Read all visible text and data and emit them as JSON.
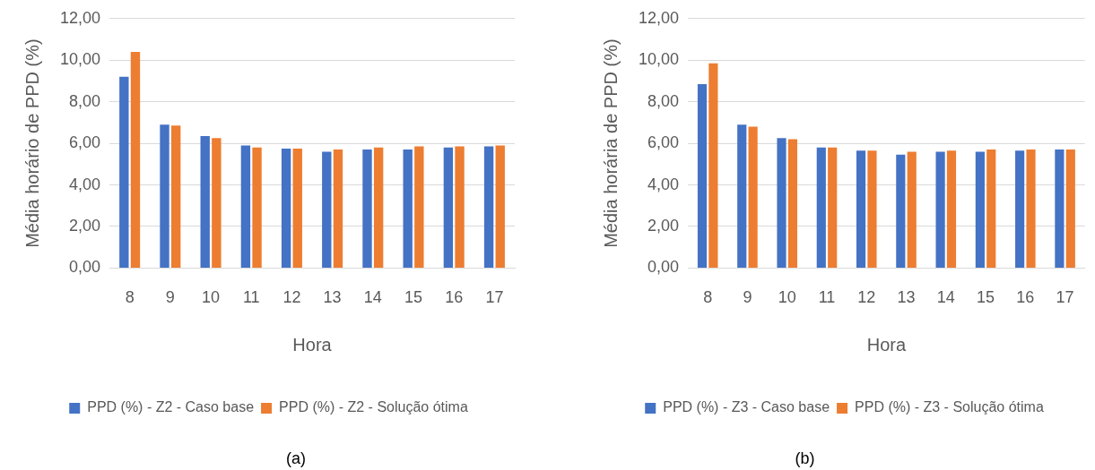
{
  "chart_data": [
    {
      "type": "bar",
      "categories": [
        "8",
        "9",
        "10",
        "11",
        "12",
        "13",
        "14",
        "15",
        "16",
        "17"
      ],
      "xlabel": "Hora",
      "ylabel": "Média horário de PPD (%)",
      "series": [
        {
          "name": "PPD (%) - Z2 - Caso base",
          "color": "#4472c4",
          "values": [
            9.2,
            6.9,
            6.35,
            5.9,
            5.75,
            5.6,
            5.7,
            5.7,
            5.8,
            5.85
          ]
        },
        {
          "name": "PPD (%) - Z2 - Solução ótima",
          "color": "#ed7d31",
          "values": [
            10.4,
            6.85,
            6.25,
            5.8,
            5.75,
            5.7,
            5.8,
            5.85,
            5.85,
            5.9
          ]
        }
      ],
      "ylim": [
        0,
        12
      ],
      "yticks": [
        {
          "value": 0,
          "label": "0,00"
        },
        {
          "value": 2,
          "label": "2,00"
        },
        {
          "value": 4,
          "label": "4,00"
        },
        {
          "value": 6,
          "label": "6,00"
        },
        {
          "value": 8,
          "label": "8,00"
        },
        {
          "value": 10,
          "label": "10,00"
        },
        {
          "value": 12,
          "label": "12,00"
        }
      ],
      "grid": "y",
      "legend": "bottom",
      "annotations": [
        "(a)"
      ]
    },
    {
      "type": "bar",
      "categories": [
        "8",
        "9",
        "10",
        "11",
        "12",
        "13",
        "14",
        "15",
        "16",
        "17"
      ],
      "xlabel": "Hora",
      "ylabel": "Média horária de PPD (%)",
      "series": [
        {
          "name": "PPD (%) - Z3 - Caso base",
          "color": "#4472c4",
          "values": [
            8.85,
            6.9,
            6.25,
            5.8,
            5.65,
            5.45,
            5.6,
            5.6,
            5.65,
            5.7
          ]
        },
        {
          "name": "PPD (%) - Z3 - Solução ótima",
          "color": "#ed7d31",
          "values": [
            9.85,
            6.8,
            6.2,
            5.8,
            5.65,
            5.6,
            5.65,
            5.7,
            5.7,
            5.7
          ]
        }
      ],
      "ylim": [
        0,
        12
      ],
      "yticks": [
        {
          "value": 0,
          "label": "0,00"
        },
        {
          "value": 2,
          "label": "2,00"
        },
        {
          "value": 4,
          "label": "4,00"
        },
        {
          "value": 6,
          "label": "6,00"
        },
        {
          "value": 8,
          "label": "8,00"
        },
        {
          "value": 10,
          "label": "10,00"
        },
        {
          "value": 12,
          "label": "12,00"
        }
      ],
      "grid": "y",
      "legend": "bottom",
      "annotations": [
        "(b)"
      ]
    }
  ]
}
